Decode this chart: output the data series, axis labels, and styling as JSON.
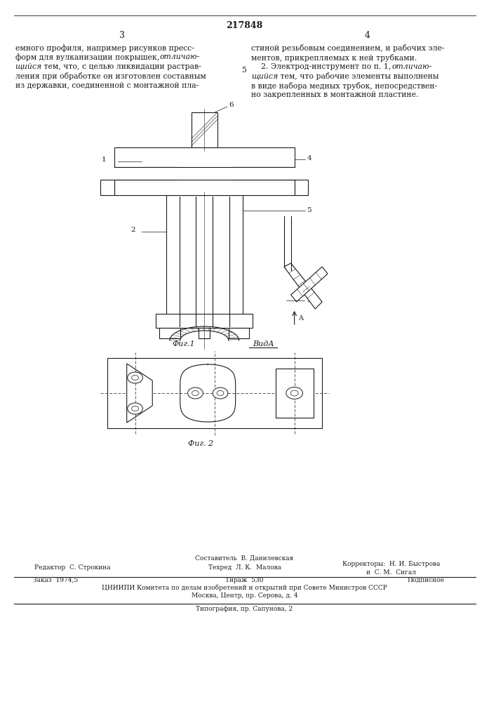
{
  "patent_number": "217848",
  "page_left": "3",
  "page_right": "4",
  "text_left_line1": "емного профиля, например рисунков пресс-",
  "text_left_line2": "форм для вулканизации покрышек, ",
  "text_left_line2_italic": "отличаю-",
  "text_left_line3_italic": "щийся",
  "text_left_line3": " тем, что, с целью ликвидации растрав-",
  "text_left_line4": "ления при обработке он изготовлен составным",
  "text_left_line5": "из державки, соединенной с монтажной пла-",
  "text_center_num": "5",
  "text_right_line1": "стиной резьбовым соединением, и рабочих эле-",
  "text_right_line2": "ментов, прикрепляемых к ней трубками.",
  "text_right_line3": "    2. Электрод-инструмент по п. 1, ",
  "text_right_line3_italic": "отличаю-",
  "text_right_line4_italic": "щийся",
  "text_right_line4": " тем, что рабочие элементы выполнены",
  "text_right_line5": "в виде набора медных трубок, непосредствен-",
  "text_right_line6": "но закрепленных в монтажной пластине.",
  "fig1_label": "Фиг. 1",
  "fig2_label": "Фиг. 2",
  "view_label": "ВидА",
  "bg_color": "#ffffff",
  "text_color": "#1a1a1a",
  "line_color": "#2a2a2a"
}
